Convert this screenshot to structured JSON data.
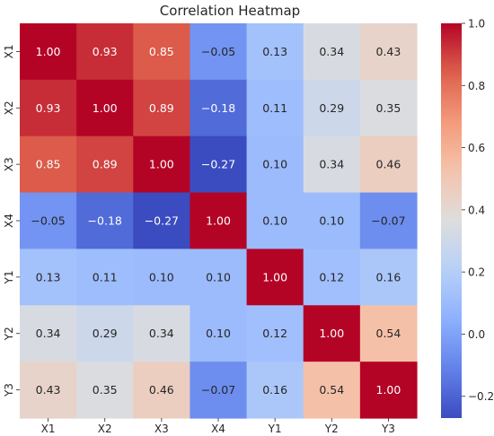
{
  "chart_data": {
    "type": "heatmap",
    "title": "Correlation Heatmap",
    "xlabel": "",
    "ylabel": "",
    "x_categories": [
      "X1",
      "X2",
      "X3",
      "X4",
      "Y1",
      "Y2",
      "Y3"
    ],
    "y_categories": [
      "X1",
      "X2",
      "X3",
      "X4",
      "Y1",
      "Y2",
      "Y3"
    ],
    "values": [
      [
        1.0,
        0.93,
        0.85,
        -0.05,
        0.13,
        0.34,
        0.43
      ],
      [
        0.93,
        1.0,
        0.89,
        -0.18,
        0.11,
        0.29,
        0.35
      ],
      [
        0.85,
        0.89,
        1.0,
        -0.27,
        0.1,
        0.34,
        0.46
      ],
      [
        -0.05,
        -0.18,
        -0.27,
        1.0,
        0.1,
        0.1,
        -0.07
      ],
      [
        0.13,
        0.11,
        0.1,
        0.1,
        1.0,
        0.12,
        0.16
      ],
      [
        0.34,
        0.29,
        0.34,
        0.1,
        0.12,
        1.0,
        0.54
      ],
      [
        0.43,
        0.35,
        0.46,
        -0.07,
        0.16,
        0.54,
        1.0
      ]
    ],
    "annotation_format": "0.00",
    "colormap": "coolwarm",
    "color_range": [
      -0.27,
      1.0
    ],
    "colorbar_ticks": [
      -0.2,
      0.0,
      0.2,
      0.4,
      0.6,
      0.8,
      1.0
    ],
    "colorbar_tick_labels": [
      "−0.2",
      "0.0",
      "0.2",
      "0.4",
      "0.6",
      "0.8",
      "1.0"
    ],
    "grid": false,
    "legend": "colorbar-right"
  }
}
